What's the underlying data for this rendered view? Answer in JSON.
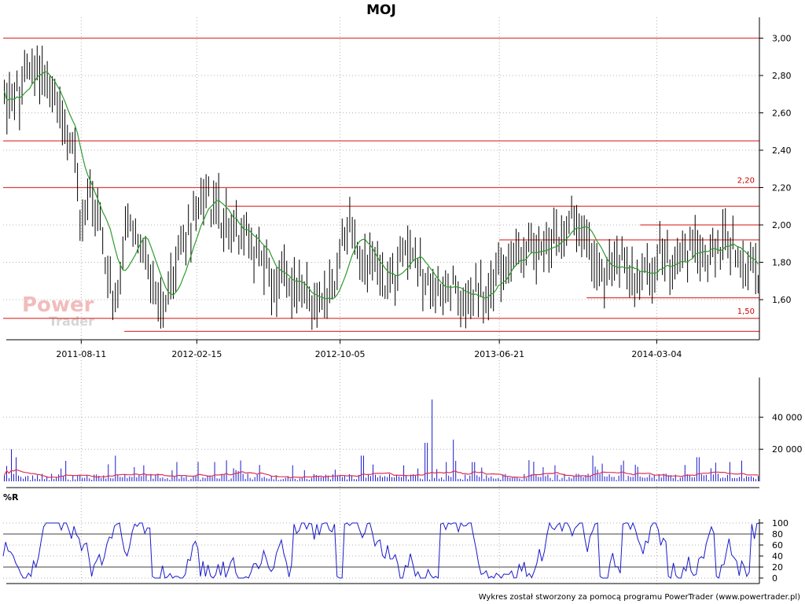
{
  "colors": {
    "price_bars": "#000000",
    "moving_average": "#2e9a2e",
    "support_resistance": "#e04040",
    "level_label": "#cc0000",
    "volume_bars": "#1a1acc",
    "volume_average": "#e03050",
    "williams_r": "#1a1acc",
    "grid": "#b0b0b0",
    "watermark": "#f2bcbc"
  },
  "chart_data": [
    {
      "type": "ohlc",
      "title": "MOJ",
      "ylim": [
        1.43,
        3.05
      ],
      "y_ticks": [
        "3,00",
        "2,80",
        "2,60",
        "2,40",
        "2,20",
        "2,00",
        "1,80",
        "1,60"
      ],
      "y_tick_values": [
        3.0,
        2.8,
        2.6,
        2.4,
        2.2,
        2.0,
        1.8,
        1.6
      ],
      "x_tick_labels": [
        "2011-08-11",
        "2012-02-15",
        "2012-10-05",
        "2013-06-21",
        "2014-03-04"
      ],
      "x_tick_dates": [
        "2011-08-11",
        "2012-02-15",
        "2012-10-05",
        "2013-06-21",
        "2014-03-04"
      ],
      "x_range": [
        "2011-04-06",
        "2014-08-18"
      ],
      "grid": true,
      "moving_average_line": "green",
      "price_path": [
        [
          "2011-04-06",
          2.65
        ],
        [
          "2011-04-20",
          2.68
        ],
        [
          "2011-05-05",
          2.7
        ],
        [
          "2011-05-15",
          2.85
        ],
        [
          "2011-05-25",
          2.92
        ],
        [
          "2011-06-05",
          2.8
        ],
        [
          "2011-06-20",
          2.72
        ],
        [
          "2011-07-05",
          2.62
        ],
        [
          "2011-07-20",
          2.45
        ],
        [
          "2011-07-30",
          2.4
        ],
        [
          "2011-08-05",
          2.2
        ],
        [
          "2011-08-12",
          1.95
        ],
        [
          "2011-08-20",
          2.1
        ],
        [
          "2011-09-01",
          2.15
        ],
        [
          "2011-09-10",
          2.05
        ],
        [
          "2011-09-20",
          1.78
        ],
        [
          "2011-10-01",
          1.65
        ],
        [
          "2011-10-15",
          1.72
        ],
        [
          "2011-10-25",
          2.1
        ],
        [
          "2011-11-05",
          1.95
        ],
        [
          "2011-11-15",
          1.88
        ],
        [
          "2011-11-25",
          1.82
        ],
        [
          "2011-12-05",
          1.62
        ],
        [
          "2011-12-20",
          1.55
        ],
        [
          "2012-01-05",
          1.72
        ],
        [
          "2012-01-20",
          1.85
        ],
        [
          "2012-02-01",
          1.95
        ],
        [
          "2012-02-10",
          2.02
        ],
        [
          "2012-02-20",
          2.15
        ],
        [
          "2012-03-01",
          2.18
        ],
        [
          "2012-03-10",
          2.1
        ],
        [
          "2012-03-25",
          2.05
        ],
        [
          "2012-04-10",
          2.0
        ],
        [
          "2012-04-25",
          1.95
        ],
        [
          "2012-05-10",
          1.95
        ],
        [
          "2012-05-25",
          1.85
        ],
        [
          "2012-06-10",
          1.75
        ],
        [
          "2012-06-25",
          1.7
        ],
        [
          "2012-07-10",
          1.75
        ],
        [
          "2012-07-25",
          1.62
        ],
        [
          "2012-08-10",
          1.68
        ],
        [
          "2012-08-25",
          1.58
        ],
        [
          "2012-09-10",
          1.62
        ],
        [
          "2012-09-25",
          1.68
        ],
        [
          "2012-10-05",
          1.88
        ],
        [
          "2012-10-15",
          2.05
        ],
        [
          "2012-10-25",
          1.95
        ],
        [
          "2012-11-10",
          1.85
        ],
        [
          "2012-11-25",
          1.75
        ],
        [
          "2012-12-10",
          1.7
        ],
        [
          "2012-12-25",
          1.68
        ],
        [
          "2013-01-10",
          1.82
        ],
        [
          "2013-01-20",
          1.9
        ],
        [
          "2013-02-05",
          1.78
        ],
        [
          "2013-02-20",
          1.72
        ],
        [
          "2013-03-10",
          1.68
        ],
        [
          "2013-03-25",
          1.7
        ],
        [
          "2013-04-10",
          1.65
        ],
        [
          "2013-04-25",
          1.58
        ],
        [
          "2013-05-10",
          1.64
        ],
        [
          "2013-05-25",
          1.6
        ],
        [
          "2013-06-10",
          1.7
        ],
        [
          "2013-06-21",
          1.8
        ],
        [
          "2013-07-05",
          1.75
        ],
        [
          "2013-07-20",
          1.82
        ],
        [
          "2013-08-05",
          1.9
        ],
        [
          "2013-08-20",
          1.85
        ],
        [
          "2013-09-05",
          1.88
        ],
        [
          "2013-09-20",
          1.95
        ],
        [
          "2013-10-05",
          2.0
        ],
        [
          "2013-10-20",
          2.06
        ],
        [
          "2013-11-01",
          2.02
        ],
        [
          "2013-11-10",
          1.9
        ],
        [
          "2013-11-25",
          1.8
        ],
        [
          "2013-12-10",
          1.75
        ],
        [
          "2013-12-25",
          1.8
        ],
        [
          "2014-01-10",
          1.78
        ],
        [
          "2014-01-25",
          1.72
        ],
        [
          "2014-02-10",
          1.75
        ],
        [
          "2014-02-25",
          1.73
        ],
        [
          "2014-03-04",
          1.8
        ],
        [
          "2014-03-15",
          1.85
        ],
        [
          "2014-03-25",
          1.75
        ],
        [
          "2014-04-10",
          1.82
        ],
        [
          "2014-04-25",
          1.88
        ],
        [
          "2014-05-10",
          1.9
        ],
        [
          "2014-05-25",
          1.86
        ],
        [
          "2014-06-10",
          1.9
        ],
        [
          "2014-06-25",
          1.88
        ],
        [
          "2014-07-10",
          1.86
        ],
        [
          "2014-07-25",
          1.8
        ],
        [
          "2014-08-10",
          1.78
        ],
        [
          "2014-08-18",
          1.76
        ]
      ],
      "horizontal_lines": [
        {
          "from": "2011-04-06",
          "to": "2014-08-18",
          "value": 3.0
        },
        {
          "from": "2011-04-06",
          "to": "2014-08-18",
          "value": 2.45
        },
        {
          "from": "2011-04-06",
          "to": "2014-08-18",
          "value": 2.2
        },
        {
          "from": "2012-04-05",
          "to": "2014-08-18",
          "value": 2.1
        },
        {
          "from": "2014-02-05",
          "to": "2014-08-18",
          "value": 2.0
        },
        {
          "from": "2013-06-21",
          "to": "2014-08-18",
          "value": 1.92
        },
        {
          "from": "2013-11-10",
          "to": "2014-08-18",
          "value": 1.61
        },
        {
          "from": "2011-04-06",
          "to": "2014-08-18",
          "value": 1.5
        },
        {
          "from": "2011-10-20",
          "to": "2014-08-18",
          "value": 1.43
        }
      ],
      "level_labels": [
        {
          "text": "2,20",
          "value": 2.2
        },
        {
          "text": "1,50",
          "value": 1.5
        }
      ]
    },
    {
      "type": "bar",
      "name": "volume",
      "ylim": [
        0,
        55000
      ],
      "y_ticks": [
        "40 000",
        "20 000"
      ],
      "y_tick_values": [
        40000,
        20000
      ],
      "typical_volume": 3000,
      "spikes": [
        {
          "date": "2011-04-20",
          "value": 20000
        },
        {
          "date": "2011-04-28",
          "value": 15000
        },
        {
          "date": "2011-07-10",
          "value": 8000
        },
        {
          "date": "2011-10-05",
          "value": 16000
        },
        {
          "date": "2011-11-20",
          "value": 10000
        },
        {
          "date": "2012-01-15",
          "value": 12000
        },
        {
          "date": "2012-03-15",
          "value": 12000
        },
        {
          "date": "2012-07-20",
          "value": 10000
        },
        {
          "date": "2012-11-10",
          "value": 16000
        },
        {
          "date": "2013-02-10",
          "value": 8000
        },
        {
          "date": "2013-02-22",
          "value": 24000
        },
        {
          "date": "2013-03-05",
          "value": 51000
        },
        {
          "date": "2013-04-08",
          "value": 26000
        },
        {
          "date": "2013-05-10",
          "value": 12000
        },
        {
          "date": "2013-09-20",
          "value": 10000
        },
        {
          "date": "2013-11-20",
          "value": 16000
        },
        {
          "date": "2014-05-10",
          "value": 15000
        },
        {
          "date": "2014-07-01",
          "value": 12000
        }
      ],
      "average_line": "red"
    },
    {
      "type": "line",
      "name": "%R",
      "title": "%R",
      "ylim": [
        0,
        100
      ],
      "y_ticks": [
        "100",
        "80",
        "60",
        "40",
        "20",
        "0"
      ],
      "y_tick_values": [
        100,
        80,
        60,
        40,
        20,
        0
      ],
      "reference_levels": [
        80,
        20
      ],
      "sample_count": 300
    }
  ],
  "watermark": {
    "line1": "Power",
    "line2": "Trader"
  },
  "footer": "Wykres został stworzony za pomocą programu PowerTrader (www.powertrader.pl)"
}
